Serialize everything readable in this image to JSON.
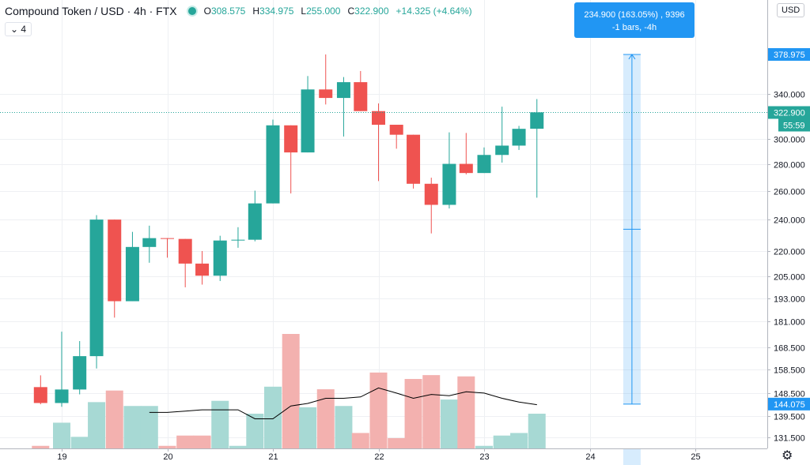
{
  "header": {
    "title": "Compound Token / USD · 4h · FTX",
    "ohlc": [
      {
        "label": "O",
        "value": "308.575"
      },
      {
        "label": "H",
        "value": "334.975"
      },
      {
        "label": "L",
        "value": "255.000"
      },
      {
        "label": "C",
        "value": "322.900"
      },
      {
        "label": "",
        "value": "+14.325 (+4.64%)"
      }
    ],
    "indicator_label": "4",
    "currency_button": "USD"
  },
  "measure_tooltip": {
    "line1": "234.900 (163.05%) , 9396",
    "line2": "-1 bars, -4h"
  },
  "settings_icon": "gear-icon",
  "chart_data": {
    "type": "candlestick",
    "title": "Compound Token / USD · 4h · FTX",
    "interval": "4h",
    "x_ticks": [
      "19",
      "20",
      "21",
      "22",
      "23",
      "24",
      "25"
    ],
    "y_ticks": [
      131.5,
      139.5,
      148.5,
      158.5,
      168.5,
      181.0,
      193.0,
      205.0,
      220.0,
      240.0,
      260.0,
      280.0,
      300.0,
      340.0
    ],
    "y_tick_labels": [
      "131.500",
      "139.500",
      "148.500",
      "158.500",
      "168.500",
      "181.000",
      "193.000",
      "205.000",
      "220.000",
      "240.000",
      "260.000",
      "280.000",
      "300.000",
      "340.000"
    ],
    "y_scale": "log",
    "ylim": [
      128,
      395
    ],
    "last_price": 322.9,
    "last_price_label": "322.900",
    "countdown_label": "55:59",
    "measure_top_label": "378.975",
    "measure_bottom_label": "144.075",
    "measure_top": 378.975,
    "measure_bottom": 144.075,
    "measure_x": 24.4,
    "colors": {
      "up": "#26a69a",
      "down": "#ef5350",
      "up_volume": "#a7d9d4",
      "down_volume": "#f3b1af",
      "ma": "#000000",
      "accent": "#2196f3"
    },
    "candles": [
      {
        "t": 18.8,
        "o": 151.0,
        "h": 156.0,
        "l": 144.0,
        "c": 144.5
      },
      {
        "t": 19.0,
        "o": 144.5,
        "h": 176.0,
        "l": 143.0,
        "c": 150.0
      },
      {
        "t": 19.17,
        "o": 150.0,
        "h": 171.5,
        "l": 148.0,
        "c": 164.5
      },
      {
        "t": 19.33,
        "o": 164.5,
        "h": 243.0,
        "l": 159.0,
        "c": 240.0
      },
      {
        "t": 19.5,
        "o": 240.0,
        "h": 240.0,
        "l": 183.0,
        "c": 191.5
      },
      {
        "t": 19.67,
        "o": 191.5,
        "h": 232.0,
        "l": 191.5,
        "c": 222.5
      },
      {
        "t": 19.83,
        "o": 222.5,
        "h": 236.0,
        "l": 213.0,
        "c": 228.0
      },
      {
        "t": 20.0,
        "o": 228.0,
        "h": 228.0,
        "l": 216.0,
        "c": 227.5
      },
      {
        "t": 20.17,
        "o": 227.5,
        "h": 227.5,
        "l": 199.0,
        "c": 212.5
      },
      {
        "t": 20.33,
        "o": 212.5,
        "h": 220.0,
        "l": 200.5,
        "c": 205.5
      },
      {
        "t": 20.5,
        "o": 205.5,
        "h": 229.5,
        "l": 202.5,
        "c": 226.5
      },
      {
        "t": 20.67,
        "o": 226.5,
        "h": 235.0,
        "l": 222.0,
        "c": 227.0
      },
      {
        "t": 20.83,
        "o": 227.0,
        "h": 260.0,
        "l": 226.0,
        "c": 251.0
      },
      {
        "t": 21.0,
        "o": 251.0,
        "h": 316.5,
        "l": 251.0,
        "c": 311.5
      },
      {
        "t": 21.17,
        "o": 311.5,
        "h": 311.5,
        "l": 258.0,
        "c": 289.0
      },
      {
        "t": 21.33,
        "o": 289.0,
        "h": 357.0,
        "l": 289.0,
        "c": 344.0
      },
      {
        "t": 21.5,
        "o": 344.0,
        "h": 379.0,
        "l": 330.0,
        "c": 336.0
      },
      {
        "t": 21.67,
        "o": 336.0,
        "h": 356.0,
        "l": 302.0,
        "c": 351.0
      },
      {
        "t": 21.83,
        "o": 351.0,
        "h": 362.0,
        "l": 324.0,
        "c": 324.0
      },
      {
        "t": 22.0,
        "o": 324.0,
        "h": 331.0,
        "l": 267.0,
        "c": 312.0
      },
      {
        "t": 22.17,
        "o": 312.0,
        "h": 312.0,
        "l": 292.0,
        "c": 303.5
      },
      {
        "t": 22.33,
        "o": 303.5,
        "h": 303.5,
        "l": 261.5,
        "c": 265.0
      },
      {
        "t": 22.5,
        "o": 265.0,
        "h": 269.5,
        "l": 231.0,
        "c": 250.0
      },
      {
        "t": 22.67,
        "o": 250.0,
        "h": 305.5,
        "l": 247.5,
        "c": 280.0
      },
      {
        "t": 22.83,
        "o": 280.0,
        "h": 305.0,
        "l": 272.0,
        "c": 273.0
      },
      {
        "t": 23.0,
        "o": 273.0,
        "h": 293.0,
        "l": 273.0,
        "c": 287.0
      },
      {
        "t": 23.17,
        "o": 287.0,
        "h": 328.0,
        "l": 281.0,
        "c": 294.5
      },
      {
        "t": 23.33,
        "o": 294.5,
        "h": 311.0,
        "l": 291.0,
        "c": 308.5
      },
      {
        "t": 23.5,
        "o": 308.575,
        "h": 334.975,
        "l": 255.0,
        "c": 322.9
      }
    ],
    "volume": [
      2,
      20,
      9,
      36,
      45,
      33,
      33,
      2,
      10,
      10,
      37,
      2,
      27,
      48,
      89,
      32,
      46,
      33,
      12,
      59,
      8,
      54,
      57,
      38,
      56,
      2,
      10,
      12,
      27
    ],
    "volume_ma": [
      null,
      null,
      null,
      null,
      null,
      null,
      28,
      28,
      29,
      30,
      30,
      30,
      23,
      23,
      33,
      35,
      39,
      39,
      40,
      47,
      43,
      39,
      42,
      41,
      44,
      43,
      39,
      36,
      34
    ]
  }
}
